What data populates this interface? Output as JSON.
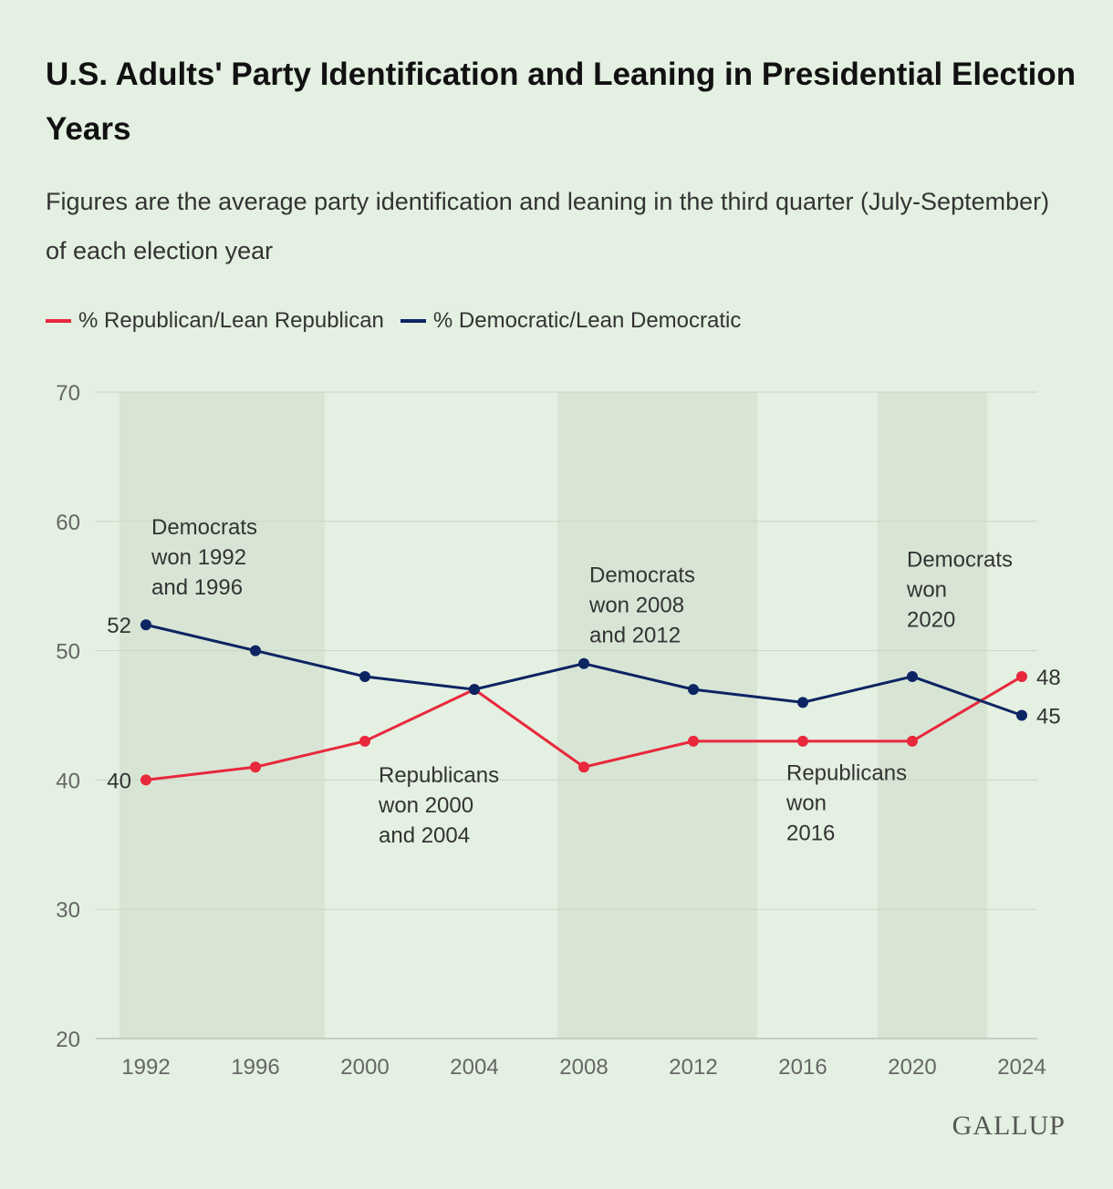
{
  "title": "U.S. Adults' Party Identification and Leaning in Presidential Election Years",
  "subtitle": "Figures are the average party identification and leaning in the third quarter (July-September) of each election year",
  "logo": "GALLUP",
  "chart_data": {
    "type": "line",
    "x": [
      1992,
      1996,
      2000,
      2004,
      2008,
      2012,
      2016,
      2020,
      2024
    ],
    "ylim": [
      20,
      70
    ],
    "yticks": [
      20,
      30,
      40,
      50,
      60,
      70
    ],
    "series": [
      {
        "name": "% Republican/Lean Republican",
        "color": "#e8283c",
        "values": [
          40,
          41,
          43,
          47,
          41,
          43,
          43,
          43,
          48
        ]
      },
      {
        "name": "% Democratic/Lean Democratic",
        "color": "#0d2463",
        "values": [
          52,
          50,
          48,
          47,
          49,
          47,
          46,
          48,
          45
        ]
      }
    ],
    "shaded_periods": [
      [
        1991,
        1998.5
      ],
      [
        2007,
        2014.3
      ],
      [
        2018.7,
        2022.7
      ]
    ],
    "data_labels": [
      {
        "series": 1,
        "index": 0,
        "text": "52"
      },
      {
        "series": 0,
        "index": 0,
        "text": "40"
      },
      {
        "series": 0,
        "index": 8,
        "text": "48"
      },
      {
        "series": 1,
        "index": 8,
        "text": "45"
      }
    ],
    "annotations": [
      {
        "lines": [
          "Democrats",
          "won 1992",
          "and 1996"
        ],
        "x": 1992.2,
        "y": 59
      },
      {
        "lines": [
          "Democrats",
          "won 2008",
          "and 2012"
        ],
        "x": 2008.2,
        "y": 55.3
      },
      {
        "lines": [
          "Democrats",
          "won",
          "2020"
        ],
        "x": 2019.8,
        "y": 56.5
      },
      {
        "lines": [
          "Republicans",
          "won 2000",
          "and 2004"
        ],
        "x": 2000.5,
        "y": 39.8
      },
      {
        "lines": [
          "Republicans",
          "won",
          "2016"
        ],
        "x": 2015.4,
        "y": 40
      }
    ]
  }
}
